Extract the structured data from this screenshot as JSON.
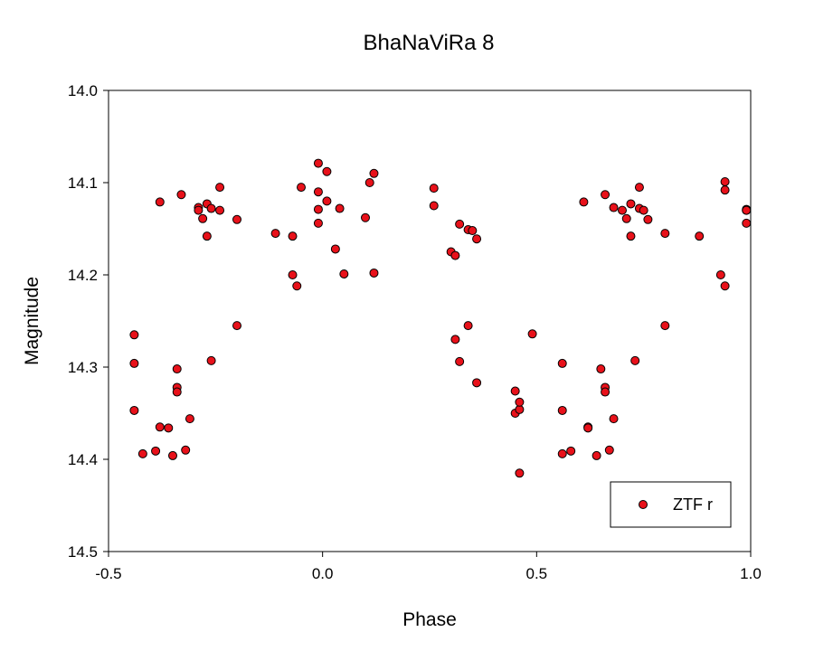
{
  "chart_data": {
    "type": "scatter",
    "title": "BhaNaViRa 8",
    "xlabel": "Phase",
    "ylabel": "Magnitude",
    "xlim": [
      -0.5,
      1.0
    ],
    "ylim": [
      14.5,
      14.0
    ],
    "y_inverted": true,
    "xticks": [
      "-0.5",
      "0.0",
      "0.5",
      "1.0"
    ],
    "yticks": [
      "14.0",
      "14.1",
      "14.2",
      "14.3",
      "14.4",
      "14.5"
    ],
    "grid": false,
    "legend_position": "bottom-right",
    "point_color": "#e8111a",
    "series": [
      {
        "name": "ZTF r",
        "x": [
          -0.44,
          -0.44,
          -0.44,
          -0.42,
          -0.39,
          -0.38,
          -0.38,
          -0.36,
          -0.35,
          -0.34,
          -0.34,
          -0.34,
          -0.33,
          -0.32,
          -0.31,
          -0.29,
          -0.29,
          -0.28,
          -0.27,
          -0.27,
          -0.26,
          -0.26,
          -0.24,
          -0.24,
          -0.2,
          -0.2,
          -0.11,
          -0.07,
          -0.07,
          -0.06,
          -0.05,
          -0.01,
          -0.01,
          -0.01,
          -0.01,
          0.01,
          0.01,
          0.03,
          0.04,
          0.05,
          0.1,
          0.11,
          0.12,
          0.12,
          0.26,
          0.26,
          0.3,
          0.31,
          0.31,
          0.32,
          0.32,
          0.34,
          0.34,
          0.35,
          0.36,
          0.36,
          0.45,
          0.45,
          0.46,
          0.46,
          0.46,
          0.49,
          0.56,
          0.56,
          0.56,
          0.58,
          0.61,
          0.62,
          0.62,
          0.64,
          0.65,
          0.66,
          0.66,
          0.66,
          0.67,
          0.68,
          0.68,
          0.7,
          0.71,
          0.72,
          0.72,
          0.73,
          0.74,
          0.74,
          0.75,
          0.76,
          0.8,
          0.8,
          0.88,
          0.93,
          0.94,
          0.94,
          0.94,
          0.99,
          0.99,
          0.99,
          0.99
        ],
        "y": [
          14.265,
          14.296,
          14.347,
          14.394,
          14.391,
          14.121,
          14.365,
          14.366,
          14.396,
          14.302,
          14.322,
          14.327,
          14.113,
          14.39,
          14.356,
          14.127,
          14.13,
          14.139,
          14.158,
          14.123,
          14.293,
          14.128,
          14.105,
          14.13,
          14.14,
          14.255,
          14.155,
          14.158,
          14.2,
          14.212,
          14.105,
          14.11,
          14.129,
          14.144,
          14.079,
          14.088,
          14.12,
          14.172,
          14.128,
          14.199,
          14.138,
          14.1,
          14.198,
          14.09,
          14.125,
          14.106,
          14.175,
          14.179,
          14.27,
          14.294,
          14.145,
          14.151,
          14.255,
          14.152,
          14.161,
          14.317,
          14.35,
          14.326,
          14.346,
          14.415,
          14.338,
          14.264,
          14.296,
          14.347,
          14.394,
          14.391,
          14.121,
          14.365,
          14.366,
          14.396,
          14.302,
          14.322,
          14.327,
          14.113,
          14.39,
          14.356,
          14.127,
          14.13,
          14.139,
          14.158,
          14.123,
          14.293,
          14.128,
          14.105,
          14.13,
          14.14,
          14.255,
          14.155,
          14.158,
          14.2,
          14.212,
          14.099,
          14.108,
          14.129,
          14.144,
          14.13,
          14.13
        ]
      }
    ]
  }
}
